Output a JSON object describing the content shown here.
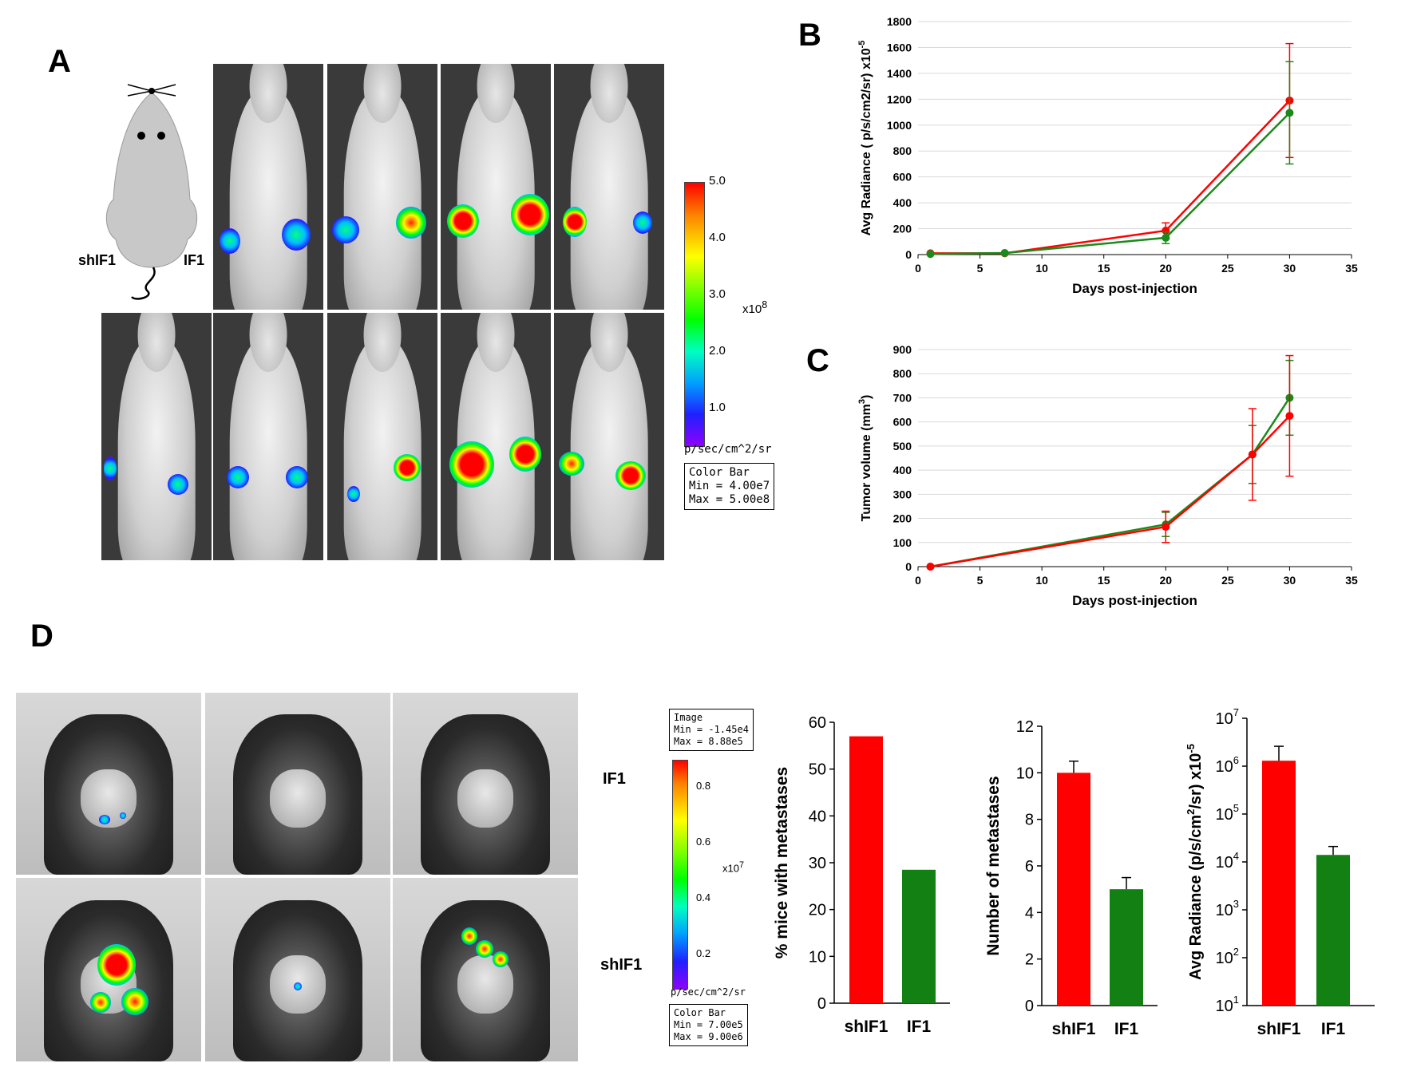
{
  "panel_labels": {
    "a": "A",
    "b": "B",
    "c": "C",
    "d": "D"
  },
  "panel_a": {
    "left_label": "shIF1",
    "right_label": "IF1",
    "colorbar": {
      "ticks": [
        "5.0",
        "4.0",
        "3.0",
        "2.0",
        "1.0"
      ],
      "multiplier": "x10",
      "multiplier_exp": "8",
      "units": "p/sec/cm^2/sr",
      "box_title": "Color Bar",
      "box_min": "Min = 4.00e7",
      "box_max": "Max = 5.00e8"
    }
  },
  "panel_d": {
    "image_box_title": "Image",
    "image_box_min": "Min = -1.45e4",
    "image_box_max": "Max = 8.88e5",
    "colorbar": {
      "ticks": [
        "0.8",
        "0.6",
        "0.4",
        "0.2"
      ],
      "multiplier": "x10",
      "multiplier_exp": "7",
      "units": "p/sec/cm^2/sr",
      "box_title": "Color Bar",
      "box_min": "Min = 7.00e5",
      "box_max": "Max = 9.00e6"
    },
    "row_top_label": "IF1",
    "row_bottom_label": "shIF1"
  },
  "colors": {
    "red": "#ff0000",
    "green": "#1a8a1a",
    "dark_green": "#138013"
  },
  "chart_data": [
    {
      "id": "B",
      "type": "line",
      "xlabel": "Days post-injection",
      "ylabel_main": "Avg Radiance ( p/s/cm2/sr) x10",
      "ylabel_exp": "-5",
      "xlim": [
        0,
        35
      ],
      "ylim": [
        0,
        1800
      ],
      "xticks": [
        0,
        5,
        10,
        15,
        20,
        25,
        30,
        35
      ],
      "yticks": [
        0,
        200,
        400,
        600,
        800,
        1000,
        1200,
        1400,
        1600,
        1800
      ],
      "series": [
        {
          "color": "#ff0000",
          "x": [
            1,
            7,
            20,
            30
          ],
          "y": [
            10,
            10,
            185,
            1190
          ],
          "err": [
            0,
            0,
            60,
            440
          ]
        },
        {
          "color": "#1a8a1a",
          "x": [
            1,
            7,
            20,
            30
          ],
          "y": [
            5,
            12,
            130,
            1095
          ],
          "err": [
            0,
            0,
            45,
            395
          ]
        }
      ]
    },
    {
      "id": "C",
      "type": "line",
      "xlabel": "Days post-injection",
      "ylabel_main": "Tumor volume (mm",
      "ylabel_exp": "3",
      "ylabel_tail": ")",
      "xlim": [
        0,
        35
      ],
      "ylim": [
        0,
        900
      ],
      "xticks": [
        0,
        5,
        10,
        15,
        20,
        25,
        30,
        35
      ],
      "yticks": [
        0,
        100,
        200,
        300,
        400,
        500,
        600,
        700,
        800,
        900
      ],
      "series": [
        {
          "color": "#1a8a1a",
          "x": [
            1,
            20,
            27,
            30
          ],
          "y": [
            0,
            175,
            465,
            700
          ],
          "err": [
            0,
            50,
            120,
            155
          ]
        },
        {
          "color": "#ff0000",
          "x": [
            1,
            20,
            27,
            30
          ],
          "y": [
            0,
            165,
            465,
            625
          ],
          "err": [
            0,
            65,
            190,
            250
          ]
        }
      ]
    },
    {
      "id": "D1",
      "type": "bar",
      "ylabel": "% mice with metastases",
      "categories": [
        "shIF1",
        "IF1"
      ],
      "values": [
        57,
        28.5
      ],
      "ylim": [
        0,
        60
      ],
      "yticks": [
        0,
        10,
        20,
        30,
        40,
        50,
        60
      ]
    },
    {
      "id": "D2",
      "type": "bar",
      "ylabel": "Number of metastases",
      "categories": [
        "shIF1",
        "IF1"
      ],
      "values": [
        10,
        5
      ],
      "err": [
        0.5,
        0.5
      ],
      "ylim": [
        0,
        12
      ],
      "yticks": [
        0,
        2,
        4,
        6,
        8,
        10,
        12
      ]
    },
    {
      "id": "D3",
      "type": "bar",
      "ylabel_main": "Avg Radiance (p/s/cm",
      "ylabel_exp1": "2",
      "ylabel_mid": "/sr) x10",
      "ylabel_exp2": "-5",
      "categories": [
        "shIF1",
        "IF1"
      ],
      "values": [
        1300000,
        14000
      ],
      "err_top": [
        2600000,
        21000
      ],
      "log": true,
      "ylim": [
        10,
        10000000
      ],
      "yticks_exp": [
        "1",
        "2",
        "3",
        "4",
        "5",
        "6",
        "7"
      ]
    }
  ]
}
